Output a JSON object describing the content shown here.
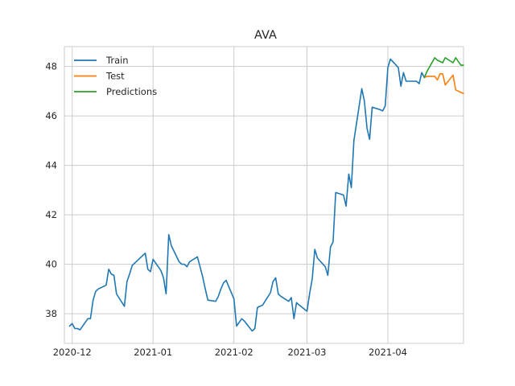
{
  "chart_data": {
    "type": "line",
    "title": "AVA",
    "xlabel": "",
    "ylabel": "",
    "x_range": [
      "2020-11-28",
      "2021-04-30"
    ],
    "ylim": [
      36.8,
      48.8
    ],
    "grid": true,
    "legend_position": "upper-left",
    "x_ticks": [
      "2020-12-01",
      "2021-01-01",
      "2021-02-01",
      "2021-03-01",
      "2021-04-01"
    ],
    "x_tick_labels": [
      "2020-12",
      "2021-01",
      "2021-02",
      "2021-03",
      "2021-04"
    ],
    "y_ticks": [
      38,
      40,
      42,
      44,
      46,
      48
    ],
    "y_tick_labels": [
      "38",
      "40",
      "42",
      "44",
      "46",
      "48"
    ],
    "series": [
      {
        "name": "Train",
        "color": "#1f77b4",
        "points": [
          [
            "2020-11-30",
            37.5
          ],
          [
            "2020-12-01",
            37.6
          ],
          [
            "2020-12-02",
            37.4
          ],
          [
            "2020-12-03",
            37.4
          ],
          [
            "2020-12-04",
            37.35
          ],
          [
            "2020-12-07",
            37.8
          ],
          [
            "2020-12-08",
            37.8
          ],
          [
            "2020-12-09",
            38.55
          ],
          [
            "2020-12-10",
            38.9
          ],
          [
            "2020-12-11",
            39.0
          ],
          [
            "2020-12-14",
            39.15
          ],
          [
            "2020-12-15",
            39.8
          ],
          [
            "2020-12-16",
            39.6
          ],
          [
            "2020-12-17",
            39.55
          ],
          [
            "2020-12-18",
            38.8
          ],
          [
            "2020-12-21",
            38.3
          ],
          [
            "2020-12-22",
            39.3
          ],
          [
            "2020-12-23",
            39.6
          ],
          [
            "2020-12-24",
            39.95
          ],
          [
            "2020-12-28",
            40.35
          ],
          [
            "2020-12-29",
            40.45
          ],
          [
            "2020-12-30",
            39.8
          ],
          [
            "2020-12-31",
            39.7
          ],
          [
            "2021-01-01",
            40.2
          ],
          [
            "2021-01-04",
            39.75
          ],
          [
            "2021-01-05",
            39.45
          ],
          [
            "2021-01-06",
            38.8
          ],
          [
            "2021-01-07",
            41.2
          ],
          [
            "2021-01-08",
            40.75
          ],
          [
            "2021-01-11",
            40.1
          ],
          [
            "2021-01-12",
            40.0
          ],
          [
            "2021-01-13",
            40.0
          ],
          [
            "2021-01-14",
            39.9
          ],
          [
            "2021-01-15",
            40.1
          ],
          [
            "2021-01-18",
            40.3
          ],
          [
            "2021-01-19",
            39.9
          ],
          [
            "2021-01-20",
            39.5
          ],
          [
            "2021-01-21",
            39.0
          ],
          [
            "2021-01-22",
            38.55
          ],
          [
            "2021-01-25",
            38.5
          ],
          [
            "2021-01-26",
            38.7
          ],
          [
            "2021-01-27",
            39.0
          ],
          [
            "2021-01-28",
            39.25
          ],
          [
            "2021-01-29",
            39.35
          ],
          [
            "2021-02-01",
            38.6
          ],
          [
            "2021-02-02",
            37.5
          ],
          [
            "2021-02-03",
            37.65
          ],
          [
            "2021-02-04",
            37.8
          ],
          [
            "2021-02-05",
            37.7
          ],
          [
            "2021-02-08",
            37.3
          ],
          [
            "2021-02-09",
            37.4
          ],
          [
            "2021-02-10",
            38.25
          ],
          [
            "2021-02-11",
            38.3
          ],
          [
            "2021-02-12",
            38.35
          ],
          [
            "2021-02-15",
            38.85
          ],
          [
            "2021-02-16",
            39.3
          ],
          [
            "2021-02-17",
            39.45
          ],
          [
            "2021-02-18",
            38.8
          ],
          [
            "2021-02-19",
            38.7
          ],
          [
            "2021-02-22",
            38.5
          ],
          [
            "2021-02-23",
            38.65
          ],
          [
            "2021-02-24",
            37.8
          ],
          [
            "2021-02-25",
            38.45
          ],
          [
            "2021-02-26",
            38.35
          ],
          [
            "2021-03-01",
            38.1
          ],
          [
            "2021-03-02",
            38.8
          ],
          [
            "2021-03-03",
            39.4
          ],
          [
            "2021-03-04",
            40.6
          ],
          [
            "2021-03-05",
            40.25
          ],
          [
            "2021-03-08",
            39.9
          ],
          [
            "2021-03-09",
            39.55
          ],
          [
            "2021-03-10",
            40.7
          ],
          [
            "2021-03-11",
            40.9
          ],
          [
            "2021-03-12",
            42.9
          ],
          [
            "2021-03-15",
            42.8
          ],
          [
            "2021-03-16",
            42.35
          ],
          [
            "2021-03-17",
            43.65
          ],
          [
            "2021-03-18",
            43.1
          ],
          [
            "2021-03-19",
            45.0
          ],
          [
            "2021-03-22",
            47.1
          ],
          [
            "2021-03-23",
            46.6
          ],
          [
            "2021-03-24",
            45.5
          ],
          [
            "2021-03-25",
            45.05
          ],
          [
            "2021-03-26",
            46.35
          ],
          [
            "2021-03-29",
            46.25
          ],
          [
            "2021-03-30",
            46.2
          ],
          [
            "2021-03-31",
            46.4
          ],
          [
            "2021-04-01",
            47.95
          ],
          [
            "2021-04-02",
            48.3
          ],
          [
            "2021-04-05",
            47.95
          ],
          [
            "2021-04-06",
            47.2
          ],
          [
            "2021-04-07",
            47.75
          ],
          [
            "2021-04-08",
            47.4
          ],
          [
            "2021-04-09",
            47.4
          ],
          [
            "2021-04-12",
            47.4
          ],
          [
            "2021-04-13",
            47.3
          ],
          [
            "2021-04-14",
            47.75
          ],
          [
            "2021-04-15",
            47.55
          ]
        ]
      },
      {
        "name": "Test",
        "color": "#ff7f0e",
        "points": [
          [
            "2021-04-15",
            47.55
          ],
          [
            "2021-04-16",
            47.6
          ],
          [
            "2021-04-19",
            47.6
          ],
          [
            "2021-04-20",
            47.45
          ],
          [
            "2021-04-21",
            47.7
          ],
          [
            "2021-04-22",
            47.7
          ],
          [
            "2021-04-23",
            47.25
          ],
          [
            "2021-04-26",
            47.65
          ],
          [
            "2021-04-27",
            47.05
          ],
          [
            "2021-04-28",
            47.0
          ],
          [
            "2021-04-29",
            46.95
          ],
          [
            "2021-04-30",
            46.9
          ]
        ]
      },
      {
        "name": "Predictions",
        "color": "#2ca02c",
        "points": [
          [
            "2021-04-15",
            47.55
          ],
          [
            "2021-04-16",
            47.8
          ],
          [
            "2021-04-19",
            48.35
          ],
          [
            "2021-04-20",
            48.25
          ],
          [
            "2021-04-21",
            48.2
          ],
          [
            "2021-04-22",
            48.15
          ],
          [
            "2021-04-23",
            48.35
          ],
          [
            "2021-04-26",
            48.15
          ],
          [
            "2021-04-27",
            48.35
          ],
          [
            "2021-04-28",
            48.2
          ],
          [
            "2021-04-29",
            48.05
          ],
          [
            "2021-04-30",
            48.05
          ]
        ]
      }
    ]
  }
}
